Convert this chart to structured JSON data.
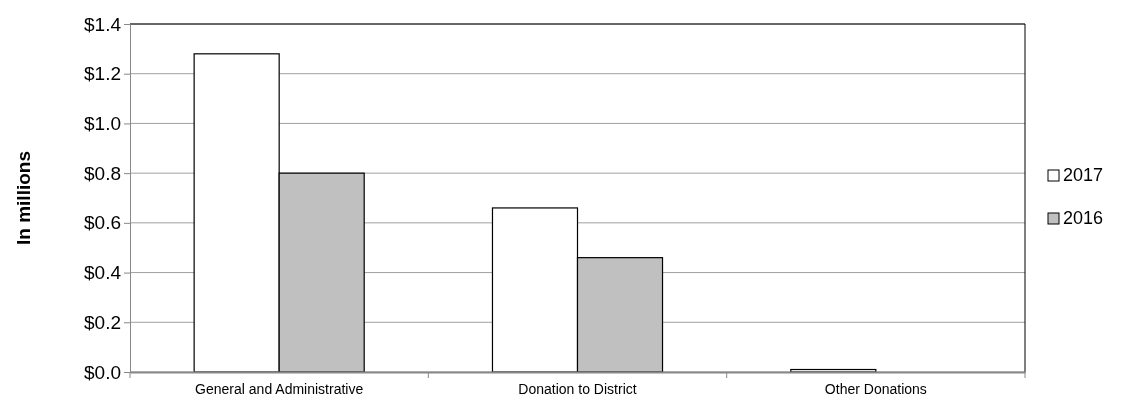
{
  "chart_data": {
    "type": "bar",
    "ylabel": "In millions",
    "categories": [
      "General and Administrative",
      "Donation to District",
      "Other Donations"
    ],
    "series": [
      {
        "name": "2017",
        "color": "#ffffff",
        "values": [
          1.28,
          0.66,
          0.01
        ]
      },
      {
        "name": "2016",
        "color": "#c0c0c0",
        "values": [
          0.8,
          0.46,
          0
        ]
      }
    ],
    "ylim": [
      0,
      1.4
    ],
    "yticks": [
      {
        "value": 0,
        "label": "$0.0"
      },
      {
        "value": 0.2,
        "label": "$0.2"
      },
      {
        "value": 0.4,
        "label": "$0.4"
      },
      {
        "value": 0.6,
        "label": "$0.6"
      },
      {
        "value": 0.8,
        "label": "$0.8"
      },
      {
        "value": 1.0,
        "label": "$1.0"
      },
      {
        "value": 1.2,
        "label": "$1.2"
      },
      {
        "value": 1.4,
        "label": "$1.4"
      }
    ],
    "grid": "y",
    "legend": "right"
  }
}
